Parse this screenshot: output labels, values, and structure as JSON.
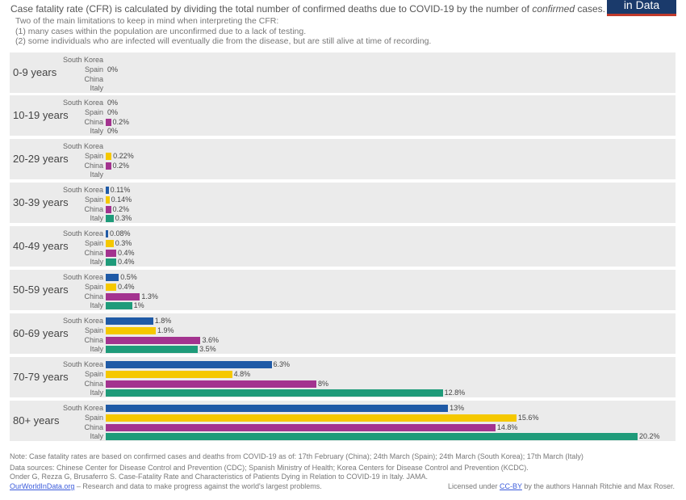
{
  "logo_text": "in Data",
  "subtitle": {
    "before": "Case fatality rate (CFR) is calculated by dividing the total number of confirmed deaths due to COVID-19 by the number of ",
    "italic": "confirmed",
    "after": " cases."
  },
  "notes": [
    "Two of the main limitations to keep in mind when interpreting the CFR:",
    "(1) many cases within the population are unconfirmed due to a lack of testing.",
    "(2) some individuals who are infected will eventually die from the disease, but are still alive at time of recording."
  ],
  "colors": {
    "South Korea": "#1f5aa6",
    "Spain": "#f5c800",
    "China": "#a3338f",
    "Italy": "#1f9b7a"
  },
  "chart_data": {
    "type": "bar",
    "orientation": "horizontal",
    "unit": "%",
    "xlim": [
      0,
      20.2
    ],
    "grid": false,
    "panels": [
      {
        "label": "0-9 years",
        "rows": [
          {
            "country": "South Korea",
            "value": null,
            "label": ""
          },
          {
            "country": "Spain",
            "value": 0,
            "label": "0%"
          },
          {
            "country": "China",
            "value": null,
            "label": ""
          },
          {
            "country": "Italy",
            "value": null,
            "label": ""
          }
        ]
      },
      {
        "label": "10-19 years",
        "rows": [
          {
            "country": "South Korea",
            "value": 0,
            "label": "0%"
          },
          {
            "country": "Spain",
            "value": 0,
            "label": "0%"
          },
          {
            "country": "China",
            "value": 0.2,
            "label": "0.2%"
          },
          {
            "country": "Italy",
            "value": 0,
            "label": "0%"
          }
        ]
      },
      {
        "label": "20-29 years",
        "rows": [
          {
            "country": "South Korea",
            "value": null,
            "label": ""
          },
          {
            "country": "Spain",
            "value": 0.22,
            "label": "0.22%"
          },
          {
            "country": "China",
            "value": 0.2,
            "label": "0.2%"
          },
          {
            "country": "Italy",
            "value": null,
            "label": ""
          }
        ]
      },
      {
        "label": "30-39 years",
        "rows": [
          {
            "country": "South Korea",
            "value": 0.11,
            "label": "0.11%"
          },
          {
            "country": "Spain",
            "value": 0.14,
            "label": "0.14%"
          },
          {
            "country": "China",
            "value": 0.2,
            "label": "0.2%"
          },
          {
            "country": "Italy",
            "value": 0.3,
            "label": "0.3%"
          }
        ]
      },
      {
        "label": "40-49 years",
        "rows": [
          {
            "country": "South Korea",
            "value": 0.08,
            "label": "0.08%"
          },
          {
            "country": "Spain",
            "value": 0.3,
            "label": "0.3%"
          },
          {
            "country": "China",
            "value": 0.4,
            "label": "0.4%"
          },
          {
            "country": "Italy",
            "value": 0.4,
            "label": "0.4%"
          }
        ]
      },
      {
        "label": "50-59 years",
        "rows": [
          {
            "country": "South Korea",
            "value": 0.5,
            "label": "0.5%"
          },
          {
            "country": "Spain",
            "value": 0.4,
            "label": "0.4%"
          },
          {
            "country": "China",
            "value": 1.3,
            "label": "1.3%"
          },
          {
            "country": "Italy",
            "value": 1,
            "label": "1%"
          }
        ]
      },
      {
        "label": "60-69 years",
        "rows": [
          {
            "country": "South Korea",
            "value": 1.8,
            "label": "1.8%"
          },
          {
            "country": "Spain",
            "value": 1.9,
            "label": "1.9%"
          },
          {
            "country": "China",
            "value": 3.6,
            "label": "3.6%"
          },
          {
            "country": "Italy",
            "value": 3.5,
            "label": "3.5%"
          }
        ]
      },
      {
        "label": "70-79 years",
        "rows": [
          {
            "country": "South Korea",
            "value": 6.3,
            "label": "6.3%"
          },
          {
            "country": "Spain",
            "value": 4.8,
            "label": "4.8%"
          },
          {
            "country": "China",
            "value": 8,
            "label": "8%"
          },
          {
            "country": "Italy",
            "value": 12.8,
            "label": "12.8%"
          }
        ]
      },
      {
        "label": "80+ years",
        "rows": [
          {
            "country": "South Korea",
            "value": 13,
            "label": "13%"
          },
          {
            "country": "Spain",
            "value": 15.6,
            "label": "15.6%"
          },
          {
            "country": "China",
            "value": 14.8,
            "label": "14.8%"
          },
          {
            "country": "Italy",
            "value": 20.2,
            "label": "20.2%"
          }
        ]
      }
    ]
  },
  "footer": {
    "note": "Note: Case fatality rates are based on confirmed cases and deaths from COVID-19 as of: 17th February (China); 24th March (Spain); 24th March (South Korea); 17th March (Italy)",
    "sources": "Data sources: Chinese Center for Disease Control and Prevention (CDC); Spanish Ministry of Health; Korea Centers for Disease Control and Prevention (KCDC).",
    "citation": "Onder G, Rezza G, Brusaferro S. Case-Fatality Rate and Characteristics of Patients Dying in Relation to COVID-19 in Italy. JAMA.",
    "owid_link": "OurWorldInData.org",
    "owid_tagline": " – Research and data to make progress against the world's largest problems.",
    "license_before": "Licensed under ",
    "license_link": "CC-BY",
    "license_after": " by the authors Hannah Ritchie and Max Roser."
  }
}
